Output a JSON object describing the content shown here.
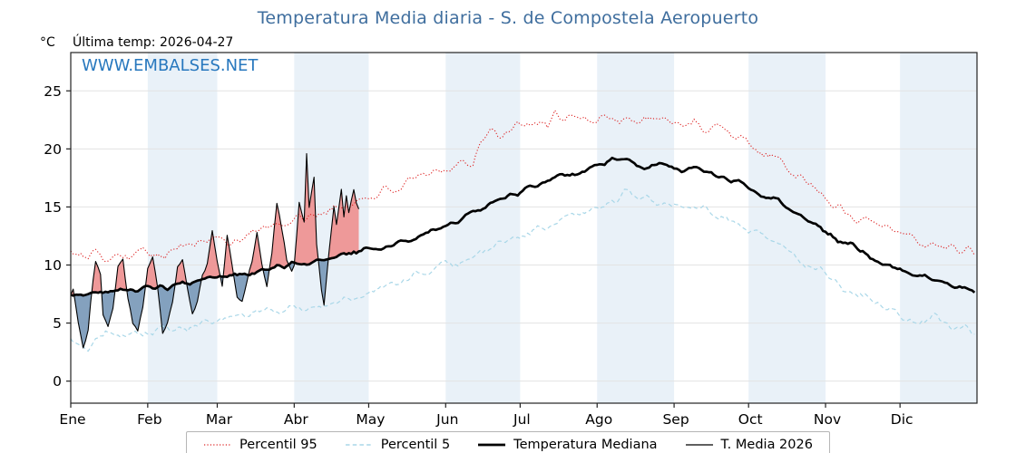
{
  "header": {
    "title": "Temperatura Media diaria - S. de Compostela Aeropuerto",
    "unit_label": "°C",
    "last_temp_label": "Última temp: 2026-04-27",
    "watermark": "WWW.EMBALSES.NET"
  },
  "colors": {
    "title": "#3f6e9e",
    "watermark": "#2878be",
    "p95": "#dd2222",
    "p5": "#a9d7e8",
    "median": "#000000",
    "t2026": "#000000",
    "fill_above": "#ee9393",
    "fill_below": "#7d9cba",
    "band": "#e9f1f8",
    "grid": "#e3e3e3",
    "axis": "#222222"
  },
  "chart_data": {
    "type": "line",
    "title": "Temperatura Media diaria - S. de Compostela Aeropuerto",
    "ylabel": "°C",
    "last_update": "2026-04-27",
    "legend_position": "bottom",
    "x_axis": {
      "unit": "day_of_year",
      "xlim": [
        1,
        366
      ],
      "month_labels": [
        "Ene",
        "Feb",
        "Mar",
        "Abr",
        "May",
        "Jun",
        "Jul",
        "Ago",
        "Sep",
        "Oct",
        "Nov",
        "Dic"
      ],
      "month_starts": [
        1,
        32,
        60,
        91,
        121,
        152,
        182,
        213,
        244,
        274,
        305,
        335
      ]
    },
    "y_axis": {
      "ticks": [
        0,
        5,
        10,
        15,
        20,
        25
      ],
      "ylim": [
        -1.9,
        28.3
      ]
    },
    "series": [
      {
        "name": "Percentil 95",
        "style": "dotted",
        "color_key": "p95",
        "width": 1.1,
        "noise": 0.45,
        "seed": 101,
        "points": [
          [
            1,
            11.0
          ],
          [
            6,
            10.6
          ],
          [
            10,
            11.2
          ],
          [
            15,
            10.7
          ],
          [
            20,
            11.1
          ],
          [
            25,
            10.8
          ],
          [
            32,
            11.3
          ],
          [
            38,
            11.0
          ],
          [
            46,
            11.7
          ],
          [
            53,
            11.9
          ],
          [
            60,
            12.3
          ],
          [
            66,
            12.0
          ],
          [
            75,
            12.9
          ],
          [
            83,
            13.2
          ],
          [
            91,
            13.9
          ],
          [
            99,
            14.3
          ],
          [
            106,
            14.7
          ],
          [
            113,
            15.2
          ],
          [
            121,
            15.9
          ],
          [
            129,
            16.4
          ],
          [
            136,
            16.9
          ],
          [
            144,
            17.6
          ],
          [
            152,
            18.3
          ],
          [
            158,
            19.0
          ],
          [
            163,
            18.7
          ],
          [
            166,
            20.8
          ],
          [
            170,
            21.9
          ],
          [
            174,
            21.0
          ],
          [
            178,
            21.4
          ],
          [
            182,
            22.1
          ],
          [
            186,
            21.6
          ],
          [
            190,
            22.4
          ],
          [
            193,
            21.8
          ],
          [
            196,
            23.4
          ],
          [
            200,
            22.4
          ],
          [
            205,
            22.9
          ],
          [
            209,
            22.3
          ],
          [
            213,
            22.6
          ],
          [
            217,
            23.0
          ],
          [
            222,
            22.4
          ],
          [
            226,
            22.9
          ],
          [
            230,
            22.2
          ],
          [
            234,
            22.8
          ],
          [
            239,
            22.3
          ],
          [
            244,
            22.5
          ],
          [
            248,
            22.0
          ],
          [
            252,
            22.6
          ],
          [
            256,
            21.7
          ],
          [
            262,
            22.1
          ],
          [
            268,
            21.1
          ],
          [
            274,
            20.4
          ],
          [
            282,
            19.2
          ],
          [
            289,
            18.5
          ],
          [
            297,
            17.2
          ],
          [
            305,
            15.8
          ],
          [
            312,
            14.7
          ],
          [
            318,
            13.9
          ],
          [
            325,
            14.2
          ],
          [
            330,
            13.3
          ],
          [
            335,
            12.7
          ],
          [
            343,
            12.1
          ],
          [
            350,
            11.6
          ],
          [
            356,
            11.9
          ],
          [
            361,
            11.2
          ],
          [
            365,
            11.1
          ]
        ]
      },
      {
        "name": "Percentil 5",
        "style": "dashed",
        "color_key": "p5",
        "width": 1.2,
        "noise": 0.35,
        "seed": 202,
        "points": [
          [
            1,
            3.6
          ],
          [
            8,
            2.9
          ],
          [
            15,
            4.3
          ],
          [
            22,
            3.9
          ],
          [
            32,
            4.1
          ],
          [
            40,
            4.6
          ],
          [
            46,
            4.3
          ],
          [
            53,
            4.8
          ],
          [
            60,
            5.1
          ],
          [
            68,
            5.4
          ],
          [
            75,
            5.8
          ],
          [
            83,
            6.1
          ],
          [
            91,
            6.4
          ],
          [
            99,
            6.3
          ],
          [
            106,
            6.7
          ],
          [
            113,
            7.2
          ],
          [
            121,
            7.7
          ],
          [
            129,
            8.1
          ],
          [
            136,
            8.7
          ],
          [
            144,
            9.3
          ],
          [
            152,
            9.9
          ],
          [
            160,
            10.4
          ],
          [
            167,
            11.1
          ],
          [
            174,
            11.9
          ],
          [
            182,
            12.5
          ],
          [
            190,
            13.1
          ],
          [
            197,
            13.6
          ],
          [
            205,
            14.2
          ],
          [
            213,
            14.9
          ],
          [
            220,
            15.5
          ],
          [
            226,
            16.4
          ],
          [
            232,
            15.8
          ],
          [
            238,
            15.1
          ],
          [
            244,
            15.3
          ],
          [
            250,
            14.9
          ],
          [
            256,
            15.2
          ],
          [
            262,
            14.3
          ],
          [
            268,
            13.8
          ],
          [
            274,
            13.0
          ],
          [
            282,
            12.3
          ],
          [
            289,
            11.4
          ],
          [
            297,
            10.1
          ],
          [
            305,
            9.4
          ],
          [
            312,
            8.1
          ],
          [
            320,
            7.3
          ],
          [
            327,
            6.5
          ],
          [
            335,
            5.7
          ],
          [
            343,
            4.9
          ],
          [
            349,
            5.4
          ],
          [
            356,
            4.7
          ],
          [
            361,
            5.0
          ],
          [
            365,
            4.1
          ]
        ]
      },
      {
        "name": "Temperatura Mediana",
        "style": "solid",
        "color_key": "median",
        "width": 2.7,
        "noise": 0.22,
        "seed": 303,
        "points": [
          [
            1,
            7.4
          ],
          [
            10,
            7.6
          ],
          [
            20,
            7.8
          ],
          [
            32,
            8.0
          ],
          [
            40,
            8.1
          ],
          [
            46,
            8.3
          ],
          [
            53,
            8.6
          ],
          [
            60,
            8.9
          ],
          [
            68,
            9.1
          ],
          [
            75,
            9.4
          ],
          [
            83,
            9.7
          ],
          [
            91,
            10.1
          ],
          [
            99,
            10.3
          ],
          [
            106,
            10.7
          ],
          [
            113,
            11.0
          ],
          [
            121,
            11.3
          ],
          [
            127,
            11.4
          ],
          [
            136,
            12.1
          ],
          [
            144,
            12.7
          ],
          [
            152,
            13.3
          ],
          [
            160,
            14.1
          ],
          [
            167,
            14.8
          ],
          [
            174,
            15.6
          ],
          [
            182,
            16.3
          ],
          [
            190,
            17.0
          ],
          [
            197,
            17.5
          ],
          [
            205,
            17.9
          ],
          [
            213,
            18.6
          ],
          [
            218,
            18.9
          ],
          [
            222,
            19.3
          ],
          [
            227,
            18.9
          ],
          [
            232,
            18.4
          ],
          [
            238,
            18.8
          ],
          [
            244,
            18.4
          ],
          [
            248,
            18.2
          ],
          [
            252,
            18.4
          ],
          [
            258,
            17.8
          ],
          [
            264,
            17.5
          ],
          [
            268,
            17.3
          ],
          [
            274,
            16.7
          ],
          [
            280,
            16.0
          ],
          [
            286,
            15.5
          ],
          [
            293,
            14.6
          ],
          [
            299,
            13.8
          ],
          [
            305,
            12.9
          ],
          [
            311,
            12.1
          ],
          [
            317,
            11.5
          ],
          [
            323,
            10.8
          ],
          [
            329,
            10.2
          ],
          [
            335,
            9.7
          ],
          [
            341,
            9.2
          ],
          [
            347,
            8.7
          ],
          [
            352,
            8.4
          ],
          [
            356,
            8.1
          ],
          [
            359,
            8.3
          ],
          [
            362,
            7.9
          ],
          [
            365,
            7.7
          ]
        ]
      },
      {
        "name": "T. Media 2026",
        "style": "solid",
        "color_key": "t2026",
        "width": 1.1,
        "noise": 0.25,
        "seed": 404,
        "end_day": 117,
        "fill_vs": "Temperatura Mediana",
        "points": [
          [
            1,
            7.5
          ],
          [
            2,
            8.1
          ],
          [
            4,
            5.0
          ],
          [
            6,
            2.9
          ],
          [
            8,
            4.4
          ],
          [
            9,
            6.8
          ],
          [
            11,
            10.4
          ],
          [
            13,
            9.2
          ],
          [
            14,
            5.6
          ],
          [
            16,
            4.6
          ],
          [
            18,
            6.2
          ],
          [
            20,
            9.9
          ],
          [
            22,
            10.6
          ],
          [
            24,
            7.1
          ],
          [
            26,
            4.9
          ],
          [
            28,
            4.4
          ],
          [
            30,
            6.4
          ],
          [
            32,
            9.7
          ],
          [
            34,
            10.6
          ],
          [
            36,
            7.9
          ],
          [
            38,
            4.1
          ],
          [
            40,
            4.9
          ],
          [
            42,
            6.6
          ],
          [
            44,
            9.9
          ],
          [
            46,
            10.3
          ],
          [
            48,
            7.9
          ],
          [
            50,
            5.9
          ],
          [
            52,
            6.8
          ],
          [
            54,
            9.1
          ],
          [
            56,
            10.1
          ],
          [
            58,
            12.7
          ],
          [
            60,
            10.1
          ],
          [
            62,
            8.2
          ],
          [
            64,
            12.8
          ],
          [
            66,
            9.9
          ],
          [
            68,
            7.3
          ],
          [
            70,
            7.0
          ],
          [
            72,
            8.7
          ],
          [
            74,
            10.3
          ],
          [
            76,
            12.9
          ],
          [
            78,
            10.0
          ],
          [
            80,
            8.2
          ],
          [
            82,
            11.0
          ],
          [
            84,
            15.3
          ],
          [
            86,
            12.9
          ],
          [
            88,
            10.4
          ],
          [
            90,
            9.7
          ],
          [
            91,
            10.2
          ],
          [
            93,
            15.5
          ],
          [
            95,
            13.8
          ],
          [
            96,
            19.8
          ],
          [
            97,
            15.0
          ],
          [
            99,
            17.6
          ],
          [
            100,
            12.0
          ],
          [
            102,
            8.0
          ],
          [
            103,
            6.6
          ],
          [
            104,
            9.0
          ],
          [
            105,
            11.2
          ],
          [
            107,
            15.1
          ],
          [
            108,
            13.4
          ],
          [
            110,
            16.4
          ],
          [
            111,
            14.1
          ],
          [
            112,
            15.9
          ],
          [
            113,
            14.3
          ],
          [
            115,
            16.2
          ],
          [
            116,
            15.2
          ],
          [
            117,
            14.7
          ]
        ]
      }
    ]
  },
  "legend": {
    "items": [
      {
        "label": "Percentil 95"
      },
      {
        "label": "Percentil 5"
      },
      {
        "label": "Temperatura Mediana"
      },
      {
        "label": "T. Media 2026"
      }
    ]
  }
}
